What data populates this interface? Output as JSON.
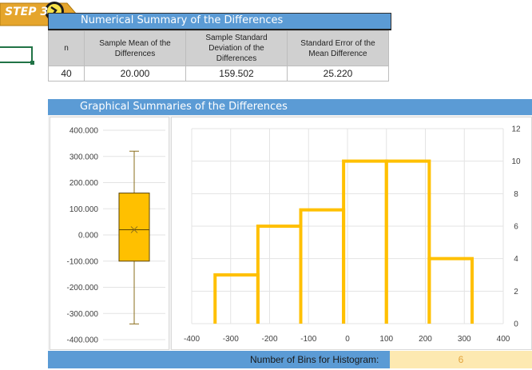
{
  "step_badge": {
    "label": "STEP 3"
  },
  "summary": {
    "title": "Numerical Summary of the Differences",
    "headers": [
      "n",
      "Sample Mean of the Differences",
      "Sample Standard Deviation of the Differences",
      "Standard Error of the Mean Difference"
    ],
    "values": [
      "40",
      "20.000",
      "159.502",
      "25.220"
    ]
  },
  "graphs": {
    "title": "Graphical Summaries of the Differences"
  },
  "chart_data": [
    {
      "type": "boxplot",
      "y_ticks": [
        "400.000",
        "300.000",
        "200.000",
        "100.000",
        "0.000",
        "-100.000",
        "-200.000",
        "-300.000",
        "-400.000"
      ],
      "ylim": [
        -400,
        400
      ],
      "whisker_max": 320,
      "q3": 160,
      "mean": 20,
      "q1": -100,
      "whisker_min": -340,
      "color": "#ffc000"
    },
    {
      "type": "histogram",
      "x_ticks": [
        "-400",
        "-300",
        "-200",
        "-100",
        "0",
        "100",
        "200",
        "300",
        "400"
      ],
      "y_ticks": [
        "0",
        "2",
        "4",
        "6",
        "8",
        "10",
        "12"
      ],
      "xlim": [
        -400,
        400
      ],
      "ylim": [
        0,
        12
      ],
      "bins": [
        {
          "start": -340,
          "end": -230,
          "count": 3
        },
        {
          "start": -230,
          "end": -120,
          "count": 6
        },
        {
          "start": -120,
          "end": -10,
          "count": 7
        },
        {
          "start": -10,
          "end": 100,
          "count": 10
        },
        {
          "start": 100,
          "end": 210,
          "count": 10
        },
        {
          "start": 210,
          "end": 320,
          "count": 4
        }
      ],
      "color": "#ffc000"
    }
  ],
  "bins_control": {
    "label": "Number of Bins for Histogram:",
    "value": "6"
  }
}
